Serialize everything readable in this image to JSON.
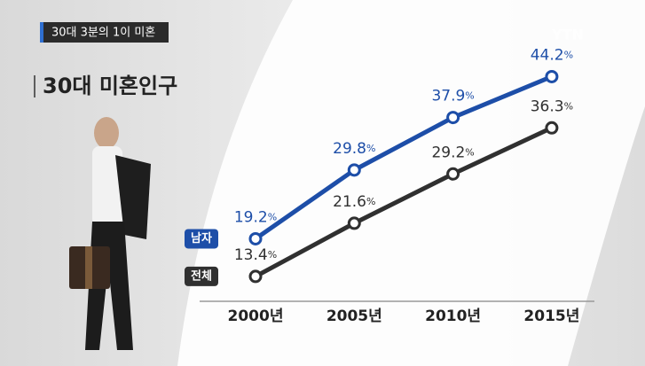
{
  "caption": "30대 3분의 1이 미혼",
  "logo": "YTN",
  "chart_data": {
    "type": "line",
    "title": "30대 미혼인구",
    "categories": [
      "2000년",
      "2005년",
      "2010년",
      "2015년"
    ],
    "series": [
      {
        "name": "남자",
        "color": "#1d4ea8",
        "values": [
          19.2,
          29.8,
          37.9,
          44.2
        ],
        "value_labels": [
          "19.2%",
          "29.8%",
          "37.9%",
          "44.2%"
        ]
      },
      {
        "name": "전체",
        "color": "#303030",
        "values": [
          13.4,
          21.6,
          29.2,
          36.3
        ],
        "value_labels": [
          "13.4%",
          "21.6%",
          "29.2%",
          "36.3%"
        ]
      }
    ],
    "ylim": [
      0,
      50
    ]
  }
}
